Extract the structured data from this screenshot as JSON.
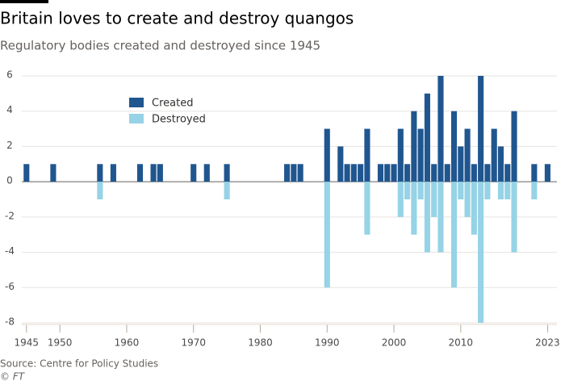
{
  "chart_data": {
    "type": "bar",
    "title": "Britain loves to create and destroy quangos",
    "subtitle": "Regulatory bodies created and destroyed since 1945",
    "source": "Source: Centre for Policy Studies",
    "credit": "© FT",
    "x": [
      1945,
      1949,
      1956,
      1958,
      1962,
      1964,
      1965,
      1970,
      1972,
      1975,
      1984,
      1985,
      1986,
      1990,
      1992,
      1993,
      1994,
      1995,
      1996,
      1998,
      1999,
      2000,
      2001,
      2002,
      2003,
      2004,
      2005,
      2006,
      2007,
      2008,
      2009,
      2010,
      2011,
      2012,
      2013,
      2014,
      2015,
      2016,
      2017,
      2018,
      2021,
      2023
    ],
    "series": [
      {
        "name": "Created",
        "color": "#20568f",
        "values": [
          1,
          1,
          1,
          1,
          1,
          1,
          1,
          1,
          1,
          1,
          1,
          1,
          1,
          3,
          2,
          1,
          1,
          1,
          3,
          1,
          1,
          1,
          3,
          1,
          4,
          3,
          5,
          1,
          6,
          1,
          4,
          2,
          3,
          1,
          6,
          1,
          3,
          2,
          1,
          4,
          1,
          1
        ]
      },
      {
        "name": "Destroyed",
        "color": "#96d3e6",
        "values": [
          0,
          0,
          -1,
          0,
          0,
          0,
          0,
          0,
          0,
          -1,
          0,
          0,
          0,
          -6,
          0,
          0,
          0,
          0,
          -3,
          0,
          0,
          0,
          -2,
          -1,
          -3,
          -1,
          -4,
          -2,
          -4,
          0,
          -6,
          -1,
          -2,
          -3,
          -8,
          -1,
          0,
          -1,
          -1,
          -4,
          -1,
          0
        ]
      }
    ],
    "xlim": [
      1944.3,
      2024.4
    ],
    "xticks": [
      1945,
      1950,
      1960,
      1970,
      1980,
      1990,
      2000,
      2010,
      2023
    ],
    "ylim": [
      -8,
      6
    ],
    "yticks": [
      -8,
      -6,
      -4,
      -2,
      0,
      2,
      4,
      6
    ],
    "grid": true
  }
}
